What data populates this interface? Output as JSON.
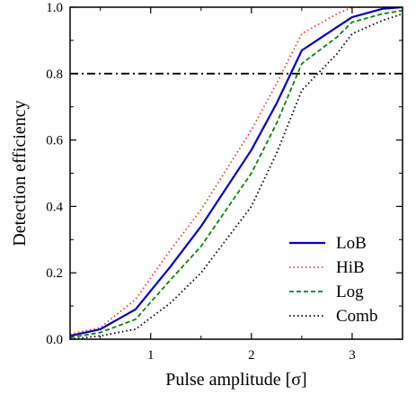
{
  "chart_data": {
    "type": "line",
    "xlabel": "Pulse amplitude [σ]",
    "ylabel": "Detection efficiency",
    "xlim": [
      0.2,
      3.5
    ],
    "ylim": [
      0.0,
      1.0
    ],
    "x_ticks": [
      1,
      2,
      3
    ],
    "y_ticks": [
      0.0,
      0.2,
      0.4,
      0.6,
      0.8,
      1.0
    ],
    "x_tick_labels": [
      "1",
      "2",
      "3"
    ],
    "y_tick_labels": [
      "0.0",
      "0.2",
      "0.4",
      "0.6",
      "0.8",
      "1.0"
    ],
    "x": [
      0.2,
      0.5,
      0.85,
      1.2,
      1.5,
      2.0,
      2.25,
      2.5,
      2.85,
      3.0,
      3.3,
      3.5
    ],
    "series": [
      {
        "name": "LoB",
        "color": "#0000cc",
        "style": "solid",
        "values": [
          0.01,
          0.03,
          0.09,
          0.22,
          0.34,
          0.57,
          0.71,
          0.87,
          0.94,
          0.97,
          0.995,
          1.0
        ]
      },
      {
        "name": "HiB",
        "color": "#ff3333",
        "style": "dotted",
        "values": [
          0.015,
          0.035,
          0.12,
          0.27,
          0.39,
          0.63,
          0.77,
          0.92,
          0.98,
          1.0,
          1.0,
          1.0
        ]
      },
      {
        "name": "Log",
        "color": "#008800",
        "style": "dashed",
        "values": [
          0.005,
          0.02,
          0.06,
          0.18,
          0.28,
          0.5,
          0.65,
          0.83,
          0.91,
          0.955,
          0.98,
          0.99
        ]
      },
      {
        "name": "Comb",
        "color": "#000000",
        "style": "dotted",
        "values": [
          0.0,
          0.01,
          0.03,
          0.11,
          0.2,
          0.4,
          0.56,
          0.75,
          0.86,
          0.92,
          0.96,
          0.98
        ]
      }
    ],
    "reference_line": {
      "y": 0.8,
      "color": "#000000",
      "style": "dash-dot"
    },
    "legend_position": "bottom-right",
    "grid": false
  }
}
